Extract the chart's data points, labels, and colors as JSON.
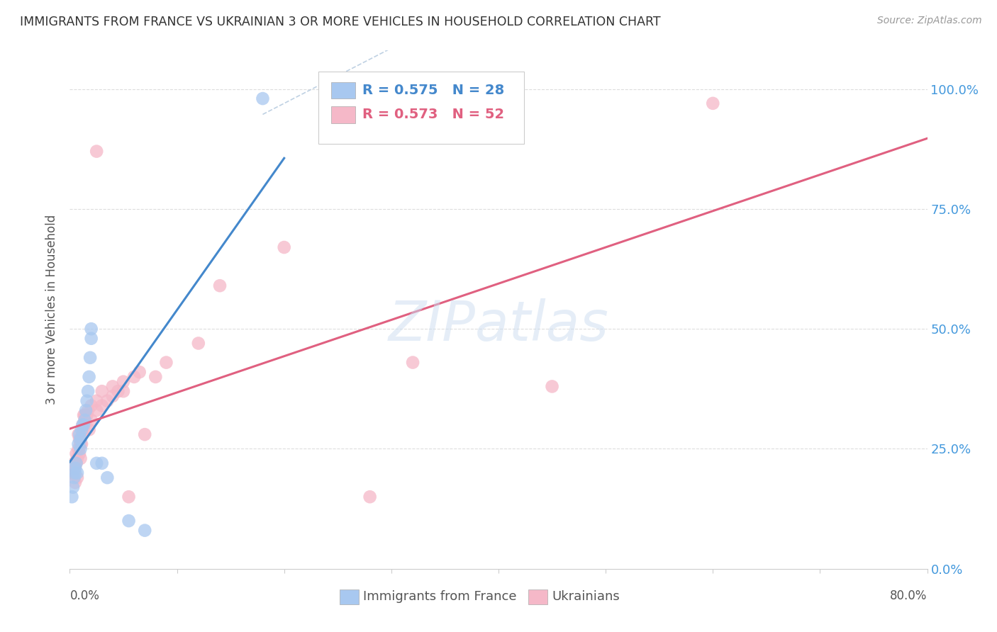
{
  "title": "IMMIGRANTS FROM FRANCE VS UKRAINIAN 3 OR MORE VEHICLES IN HOUSEHOLD CORRELATION CHART",
  "source": "Source: ZipAtlas.com",
  "ylabel": "3 or more Vehicles in Household",
  "y_ticks": [
    0.0,
    25.0,
    50.0,
    75.0,
    100.0
  ],
  "x_range": [
    0.0,
    80.0
  ],
  "y_range": [
    0.0,
    108.0
  ],
  "legend_blue_R": "R = 0.575",
  "legend_blue_N": "N = 28",
  "legend_pink_R": "R = 0.573",
  "legend_pink_N": "N = 52",
  "legend_blue_label": "Immigrants from France",
  "legend_pink_label": "Ukrainians",
  "blue_color": "#a8c8f0",
  "pink_color": "#f5b8c8",
  "blue_line_color": "#4488cc",
  "pink_line_color": "#e06080",
  "diagonal_color": "#b8cce0",
  "blue_scatter": [
    [
      0.2,
      15
    ],
    [
      0.3,
      17
    ],
    [
      0.4,
      19
    ],
    [
      0.5,
      20
    ],
    [
      0.5,
      21
    ],
    [
      0.6,
      22
    ],
    [
      0.7,
      20
    ],
    [
      0.8,
      26
    ],
    [
      0.9,
      28
    ],
    [
      1.0,
      25
    ],
    [
      1.0,
      27
    ],
    [
      1.1,
      29
    ],
    [
      1.2,
      30
    ],
    [
      1.3,
      30
    ],
    [
      1.4,
      31
    ],
    [
      1.5,
      33
    ],
    [
      1.6,
      35
    ],
    [
      1.7,
      37
    ],
    [
      1.8,
      40
    ],
    [
      1.9,
      44
    ],
    [
      2.0,
      48
    ],
    [
      2.0,
      50
    ],
    [
      2.5,
      22
    ],
    [
      3.0,
      22
    ],
    [
      3.5,
      19
    ],
    [
      5.5,
      10
    ],
    [
      7.0,
      8
    ],
    [
      18.0,
      98
    ]
  ],
  "pink_scatter": [
    [
      0.2,
      20
    ],
    [
      0.3,
      20
    ],
    [
      0.4,
      22
    ],
    [
      0.5,
      18
    ],
    [
      0.5,
      21
    ],
    [
      0.6,
      22
    ],
    [
      0.6,
      24
    ],
    [
      0.7,
      19
    ],
    [
      0.7,
      23
    ],
    [
      0.8,
      25
    ],
    [
      0.8,
      28
    ],
    [
      0.9,
      24
    ],
    [
      0.9,
      27
    ],
    [
      1.0,
      23
    ],
    [
      1.0,
      26
    ],
    [
      1.1,
      26
    ],
    [
      1.2,
      28
    ],
    [
      1.2,
      30
    ],
    [
      1.3,
      29
    ],
    [
      1.3,
      32
    ],
    [
      1.4,
      32
    ],
    [
      1.5,
      30
    ],
    [
      1.5,
      32
    ],
    [
      1.6,
      32
    ],
    [
      1.7,
      33
    ],
    [
      1.8,
      29
    ],
    [
      2.0,
      31
    ],
    [
      2.0,
      34
    ],
    [
      2.5,
      33
    ],
    [
      2.5,
      35
    ],
    [
      2.5,
      87
    ],
    [
      3.0,
      34
    ],
    [
      3.0,
      37
    ],
    [
      3.5,
      35
    ],
    [
      4.0,
      36
    ],
    [
      4.0,
      38
    ],
    [
      4.5,
      37
    ],
    [
      5.0,
      37
    ],
    [
      5.0,
      39
    ],
    [
      5.5,
      15
    ],
    [
      6.0,
      40
    ],
    [
      6.5,
      41
    ],
    [
      7.0,
      28
    ],
    [
      8.0,
      40
    ],
    [
      9.0,
      43
    ],
    [
      12.0,
      47
    ],
    [
      14.0,
      59
    ],
    [
      20.0,
      67
    ],
    [
      28.0,
      15
    ],
    [
      45.0,
      38
    ],
    [
      60.0,
      97
    ],
    [
      32.0,
      43
    ]
  ],
  "watermark": "ZIPatlas",
  "background_color": "#ffffff",
  "grid_color": "#dddddd"
}
